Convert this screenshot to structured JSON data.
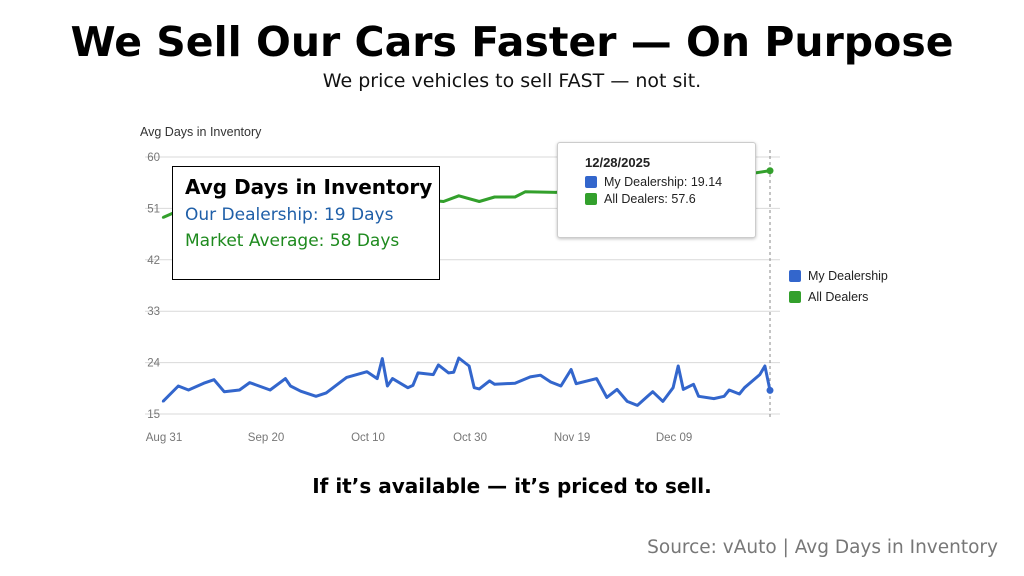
{
  "header": {
    "title": "We Sell Our Cars Faster — On Purpose",
    "subtitle": "We price vehicles to sell FAST — not sit."
  },
  "annotation": {
    "heading": "Avg Days in Inventory",
    "dealership_line": "Our Dealership: 19 Days",
    "market_line": "Market Average: 58 Days"
  },
  "tooltip": {
    "date": "12/28/2025",
    "rows": [
      "My Dealership: 19.14",
      "All Dealers: 57.6"
    ]
  },
  "footer": {
    "tagline": "If it’s available — it’s priced to sell.",
    "source": "Source: vAuto | Avg Days in Inventory"
  },
  "chart_data": {
    "type": "line",
    "title": "Avg Days in Inventory",
    "xlabel": "",
    "ylabel": "",
    "ylim": [
      15,
      60
    ],
    "yticks": [
      15,
      24,
      33,
      42,
      51,
      60
    ],
    "xticks": [
      {
        "date": "2025-08-31",
        "label": "Aug 31"
      },
      {
        "date": "2025-09-20",
        "label": "Sep 20"
      },
      {
        "date": "2025-10-10",
        "label": "Oct 10"
      },
      {
        "date": "2025-10-30",
        "label": "Oct 30"
      },
      {
        "date": "2025-11-19",
        "label": "Nov 19"
      },
      {
        "date": "2025-12-09",
        "label": "Dec 09"
      }
    ],
    "xlim": [
      "2025-08-31",
      "2025-12-28"
    ],
    "grid": true,
    "legend": "right",
    "series": [
      {
        "name": "My Dealership",
        "color": "#3366cc",
        "points": [
          [
            "2025-08-31",
            17.2
          ],
          [
            "2025-09-03",
            19.9
          ],
          [
            "2025-09-05",
            19.2
          ],
          [
            "2025-09-08",
            20.4
          ],
          [
            "2025-09-10",
            21.0
          ],
          [
            "2025-09-12",
            18.9
          ],
          [
            "2025-09-15",
            19.2
          ],
          [
            "2025-09-17",
            20.5
          ],
          [
            "2025-09-21",
            19.2
          ],
          [
            "2025-09-24",
            21.2
          ],
          [
            "2025-09-25",
            19.9
          ],
          [
            "2025-09-27",
            19.0
          ],
          [
            "2025-09-30",
            18.1
          ],
          [
            "2025-10-02",
            18.7
          ],
          [
            "2025-10-06",
            21.4
          ],
          [
            "2025-10-10",
            22.4
          ],
          [
            "2025-10-12",
            21.2
          ],
          [
            "2025-10-13",
            24.7
          ],
          [
            "2025-10-14",
            19.9
          ],
          [
            "2025-10-15",
            21.2
          ],
          [
            "2025-10-18",
            19.6
          ],
          [
            "2025-10-19",
            20.0
          ],
          [
            "2025-10-20",
            22.2
          ],
          [
            "2025-10-23",
            21.9
          ],
          [
            "2025-10-24",
            23.6
          ],
          [
            "2025-10-26",
            22.2
          ],
          [
            "2025-10-27",
            22.3
          ],
          [
            "2025-10-28",
            24.8
          ],
          [
            "2025-10-30",
            23.4
          ],
          [
            "2025-10-31",
            19.6
          ],
          [
            "2025-11-01",
            19.4
          ],
          [
            "2025-11-03",
            20.8
          ],
          [
            "2025-11-04",
            20.2
          ],
          [
            "2025-11-08",
            20.4
          ],
          [
            "2025-11-11",
            21.5
          ],
          [
            "2025-11-13",
            21.8
          ],
          [
            "2025-11-15",
            20.6
          ],
          [
            "2025-11-17",
            19.9
          ],
          [
            "2025-11-19",
            22.8
          ],
          [
            "2025-11-20",
            20.3
          ],
          [
            "2025-11-24",
            21.2
          ],
          [
            "2025-11-26",
            17.9
          ],
          [
            "2025-11-28",
            19.3
          ],
          [
            "2025-11-30",
            17.2
          ],
          [
            "2025-12-02",
            16.5
          ],
          [
            "2025-12-04",
            18.1
          ],
          [
            "2025-12-05",
            18.9
          ],
          [
            "2025-12-07",
            17.2
          ],
          [
            "2025-12-09",
            19.6
          ],
          [
            "2025-12-10",
            23.4
          ],
          [
            "2025-12-11",
            19.3
          ],
          [
            "2025-12-13",
            20.2
          ],
          [
            "2025-12-14",
            18.1
          ],
          [
            "2025-12-17",
            17.7
          ],
          [
            "2025-12-19",
            18.1
          ],
          [
            "2025-12-20",
            19.2
          ],
          [
            "2025-12-22",
            18.5
          ],
          [
            "2025-12-23",
            19.6
          ],
          [
            "2025-12-26",
            21.9
          ],
          [
            "2025-12-27",
            23.4
          ],
          [
            "2025-12-28",
            19.14
          ]
        ]
      },
      {
        "name": "All Dealers",
        "color": "#33a02c",
        "points": [
          [
            "2025-08-31",
            49.4
          ],
          [
            "2025-09-02",
            50.2
          ],
          [
            "2025-09-05",
            49.2
          ],
          [
            "2025-09-08",
            50.4
          ],
          [
            "2025-09-13",
            49.8
          ],
          [
            "2025-09-15",
            50.8
          ],
          [
            "2025-09-20",
            50.4
          ],
          [
            "2025-09-23",
            51.5
          ],
          [
            "2025-09-26",
            50.5
          ],
          [
            "2025-09-29",
            51.3
          ],
          [
            "2025-10-03",
            49.8
          ],
          [
            "2025-10-06",
            51.2
          ],
          [
            "2025-10-11",
            51.0
          ],
          [
            "2025-10-13",
            51.9
          ],
          [
            "2025-10-18",
            51.6
          ],
          [
            "2025-10-20",
            52.6
          ],
          [
            "2025-10-25",
            52.2
          ],
          [
            "2025-10-28",
            53.2
          ],
          [
            "2025-11-01",
            52.2
          ],
          [
            "2025-11-04",
            53.0
          ],
          [
            "2025-11-08",
            53.0
          ],
          [
            "2025-11-10",
            53.9
          ],
          [
            "2025-11-16",
            53.8
          ],
          [
            "2025-12-25",
            57.2
          ],
          [
            "2025-12-28",
            57.6
          ]
        ]
      }
    ]
  }
}
